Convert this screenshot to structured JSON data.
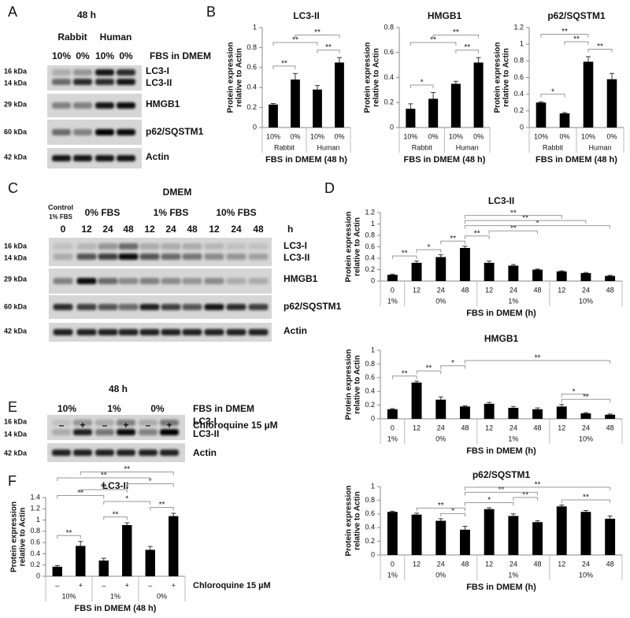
{
  "panel_letters": [
    "A",
    "B",
    "C",
    "D",
    "E",
    "F"
  ],
  "blots": [
    {
      "header": "48 h",
      "groups": [
        "Rabbit",
        "Human"
      ],
      "lanes": [
        "10%",
        "0%",
        "10%",
        "0%"
      ],
      "lanes_caption": "FBS in DMEM",
      "markers": [
        "16 kDa",
        "14 kDa",
        "29 kDa",
        "60 kDa",
        "42 kDa"
      ],
      "proteins": [
        "LC3-I",
        "LC3-II",
        "HMGB1",
        "p62/SQSTM1",
        "Actin"
      ]
    },
    {
      "header": "DMEM",
      "control": [
        "Control",
        "1% FBS"
      ],
      "groups": [
        "0% FBS",
        "1% FBS",
        "10% FBS"
      ],
      "lanes": [
        "0",
        "12",
        "24",
        "48",
        "12",
        "24",
        "48",
        "12",
        "24",
        "48"
      ],
      "lanes_caption": "h",
      "markers": [
        "16 kDa",
        "14 kDa",
        "29 kDa",
        "60 kDa",
        "42 kDa"
      ],
      "proteins": [
        "LC3-I",
        "LC3-II",
        "HMGB1",
        "p62/SQSTM1",
        "Actin"
      ]
    },
    {
      "header": "48 h",
      "groups": [
        "10%",
        "1%",
        "0%"
      ],
      "groups_caption": "FBS in DMEM",
      "lanes": [
        "–",
        "+",
        "–",
        "+",
        "–",
        "+"
      ],
      "lanes_caption": "Chloroquine 15 µM",
      "markers": [
        "16 kDa",
        "14 kDa",
        "42 kDa"
      ],
      "proteins": [
        "LC3-I",
        "LC3-II",
        "Actin"
      ]
    }
  ],
  "chart_data": [
    {
      "type": "bar",
      "title": "LC3-II",
      "ylabel": [
        "Protein expression",
        "relative to Actin"
      ],
      "xlabel": "FBS in DMEM (48 h)",
      "categories": [
        "10%",
        "0%",
        "10%",
        "0%"
      ],
      "groups": [
        {
          "label": "Rabbit",
          "size": 2
        },
        {
          "label": "Human",
          "size": 2
        }
      ],
      "values": [
        0.23,
        0.48,
        0.38,
        0.65
      ],
      "errors": [
        0.01,
        0.06,
        0.04,
        0.05
      ],
      "color": "#000000",
      "ylim": [
        0,
        1
      ],
      "yticks": [
        0,
        0.2,
        0.4,
        0.6,
        0.8,
        1
      ],
      "significance": [
        {
          "from": 0,
          "to": 1,
          "label": "**"
        },
        {
          "from": 2,
          "to": 3,
          "label": "**"
        },
        {
          "from": 0,
          "to": 2,
          "label": "**"
        },
        {
          "from": 1,
          "to": 3,
          "label": "**"
        }
      ]
    },
    {
      "type": "bar",
      "title": "HMGB1",
      "ylabel": [
        "Protein expression",
        "relative to Actin"
      ],
      "xlabel": "FBS in DMEM (48 h)",
      "categories": [
        "10%",
        "0%",
        "10%",
        "0%"
      ],
      "groups": [
        {
          "label": "Rabbit",
          "size": 2
        },
        {
          "label": "Human",
          "size": 2
        }
      ],
      "values": [
        0.15,
        0.23,
        0.35,
        0.52
      ],
      "errors": [
        0.04,
        0.05,
        0.02,
        0.04
      ],
      "color": "#000000",
      "ylim": [
        0,
        0.8
      ],
      "yticks": [
        0,
        0.2,
        0.4,
        0.6,
        0.8
      ],
      "significance": [
        {
          "from": 0,
          "to": 1,
          "label": "*"
        },
        {
          "from": 2,
          "to": 3,
          "label": "**"
        },
        {
          "from": 0,
          "to": 2,
          "label": "**"
        },
        {
          "from": 1,
          "to": 3,
          "label": "**"
        }
      ]
    },
    {
      "type": "bar",
      "title": "p62/SQSTM1",
      "ylabel": [
        "Protein expression",
        "relative to Actin"
      ],
      "xlabel": "FBS in DMEM (48 h)",
      "categories": [
        "10%",
        "0%",
        "10%",
        "0%"
      ],
      "groups": [
        {
          "label": "Rabbit",
          "size": 2
        },
        {
          "label": "Human",
          "size": 2
        }
      ],
      "values": [
        0.3,
        0.17,
        0.79,
        0.58
      ],
      "errors": [
        0.01,
        0.01,
        0.06,
        0.07
      ],
      "color": "#000000",
      "ylim": [
        0,
        1.2
      ],
      "yticks": [
        0,
        0.2,
        0.4,
        0.6,
        0.8,
        1,
        1.2
      ],
      "significance": [
        {
          "from": 0,
          "to": 1,
          "label": "*"
        },
        {
          "from": 2,
          "to": 3,
          "label": "**"
        },
        {
          "from": 1,
          "to": 2,
          "label": "**"
        },
        {
          "from": 0,
          "to": 2,
          "label": "**"
        }
      ]
    },
    {
      "type": "bar",
      "title": "LC3-II",
      "ylabel": [
        "Protein expression",
        "relative to Actin"
      ],
      "xlabel": "FBS in DMEM (h)",
      "categories": [
        "0",
        "12",
        "24",
        "48",
        "12",
        "24",
        "48",
        "12",
        "24",
        "48"
      ],
      "groups": [
        {
          "label": "1%",
          "size": 1
        },
        {
          "label": "0%",
          "size": 3
        },
        {
          "label": "1%",
          "size": 3
        },
        {
          "label": "10%",
          "size": 3
        }
      ],
      "values": [
        0.11,
        0.32,
        0.42,
        0.58,
        0.32,
        0.27,
        0.2,
        0.17,
        0.14,
        0.09
      ],
      "errors": [
        0.01,
        0.03,
        0.04,
        0.03,
        0.03,
        0.02,
        0.01,
        0.01,
        0.01,
        0.01
      ],
      "color": "#000000",
      "ylim": [
        0,
        1.2
      ],
      "yticks": [
        0,
        0.2,
        0.4,
        0.6,
        0.8,
        1,
        1.2
      ],
      "significance": [
        {
          "from": 0,
          "to": 1,
          "label": "**"
        },
        {
          "from": 1,
          "to": 2,
          "label": "*"
        },
        {
          "from": 2,
          "to": 3,
          "label": "**"
        },
        {
          "from": 3,
          "to": 4,
          "label": "**"
        },
        {
          "from": 4,
          "to": 6,
          "label": "**"
        },
        {
          "from": 3,
          "to": 9,
          "label": "*"
        },
        {
          "from": 3,
          "to": 8,
          "label": "**"
        },
        {
          "from": 3,
          "to": 7,
          "label": "**"
        }
      ]
    },
    {
      "type": "bar",
      "title": "HMGB1",
      "ylabel": [
        "Protein expression",
        "relative to Actin"
      ],
      "xlabel": "FBS in DMEM (h)",
      "categories": [
        "0",
        "12",
        "24",
        "48",
        "12",
        "24",
        "48",
        "12",
        "24",
        "48"
      ],
      "groups": [
        {
          "label": "1%",
          "size": 1
        },
        {
          "label": "0%",
          "size": 3
        },
        {
          "label": "1%",
          "size": 3
        },
        {
          "label": "10%",
          "size": 3
        }
      ],
      "values": [
        0.14,
        0.53,
        0.28,
        0.18,
        0.22,
        0.16,
        0.14,
        0.18,
        0.08,
        0.06
      ],
      "errors": [
        0.01,
        0.02,
        0.04,
        0.01,
        0.02,
        0.02,
        0.02,
        0.03,
        0.01,
        0.01
      ],
      "color": "#000000",
      "ylim": [
        0,
        1
      ],
      "yticks": [
        0,
        0.2,
        0.4,
        0.6,
        0.8,
        1
      ],
      "significance": [
        {
          "from": 0,
          "to": 1,
          "label": "**"
        },
        {
          "from": 1,
          "to": 2,
          "label": "**"
        },
        {
          "from": 2,
          "to": 3,
          "label": "*"
        },
        {
          "from": 7,
          "to": 9,
          "label": "**"
        },
        {
          "from": 7,
          "to": 8,
          "label": "*"
        },
        {
          "from": 3,
          "to": 9,
          "label": "**"
        }
      ]
    },
    {
      "type": "bar",
      "title": "p62/SQSTM1",
      "ylabel": [
        "Protein expression",
        "relative to Actin"
      ],
      "xlabel": "FBS in DMEM (h)",
      "categories": [
        "0",
        "12",
        "24",
        "48",
        "12",
        "24",
        "48",
        "12",
        "24",
        "48"
      ],
      "groups": [
        {
          "label": "1%",
          "size": 1
        },
        {
          "label": "0%",
          "size": 3
        },
        {
          "label": "1%",
          "size": 3
        },
        {
          "label": "10%",
          "size": 3
        }
      ],
      "values": [
        0.63,
        0.59,
        0.5,
        0.37,
        0.67,
        0.57,
        0.48,
        0.71,
        0.63,
        0.53
      ],
      "errors": [
        0.01,
        0.02,
        0.03,
        0.05,
        0.02,
        0.03,
        0.02,
        0.02,
        0.02,
        0.04
      ],
      "color": "#000000",
      "ylim": [
        0,
        1
      ],
      "yticks": [
        0,
        0.2,
        0.4,
        0.6,
        0.8,
        1
      ],
      "significance": [
        {
          "from": 2,
          "to": 3,
          "label": "*"
        },
        {
          "from": 1,
          "to": 3,
          "label": "**"
        },
        {
          "from": 3,
          "to": 5,
          "label": "*"
        },
        {
          "from": 7,
          "to": 9,
          "label": "**"
        },
        {
          "from": 5,
          "to": 6,
          "label": "**"
        },
        {
          "from": 3,
          "to": 6,
          "label": "**"
        },
        {
          "from": 3,
          "to": 9,
          "label": "**"
        }
      ]
    },
    {
      "type": "bar",
      "title": "LC3-II",
      "ylabel": [
        "Protein expression",
        "relative to Actin"
      ],
      "xlabel": "FBS in DMEM (48 h)",
      "categories": [
        "–",
        "+",
        "–",
        "+",
        "–",
        "+"
      ],
      "categories_caption": "Chloroquine 15 µM",
      "groups": [
        {
          "label": "10%",
          "size": 2
        },
        {
          "label": "1%",
          "size": 2
        },
        {
          "label": "0%",
          "size": 2
        }
      ],
      "values": [
        0.17,
        0.54,
        0.28,
        0.91,
        0.47,
        1.07
      ],
      "errors": [
        0.02,
        0.08,
        0.04,
        0.04,
        0.06,
        0.05
      ],
      "color": "#000000",
      "ylim": [
        0,
        1.4
      ],
      "yticks": [
        0,
        0.2,
        0.4,
        0.6,
        0.8,
        1,
        1.2,
        1.4
      ],
      "significance": [
        {
          "from": 0,
          "to": 1,
          "label": "**"
        },
        {
          "from": 2,
          "to": 3,
          "label": "**"
        },
        {
          "from": 4,
          "to": 5,
          "label": "**"
        },
        {
          "from": 2,
          "to": 4,
          "label": "*"
        },
        {
          "from": 0,
          "to": 2,
          "label": "**"
        },
        {
          "from": 1,
          "to": 3,
          "label": "**"
        },
        {
          "from": 3,
          "to": 5,
          "label": "*"
        },
        {
          "from": 0,
          "to": 4,
          "label": "**"
        },
        {
          "from": 1,
          "to": 5,
          "label": "**"
        }
      ]
    }
  ]
}
